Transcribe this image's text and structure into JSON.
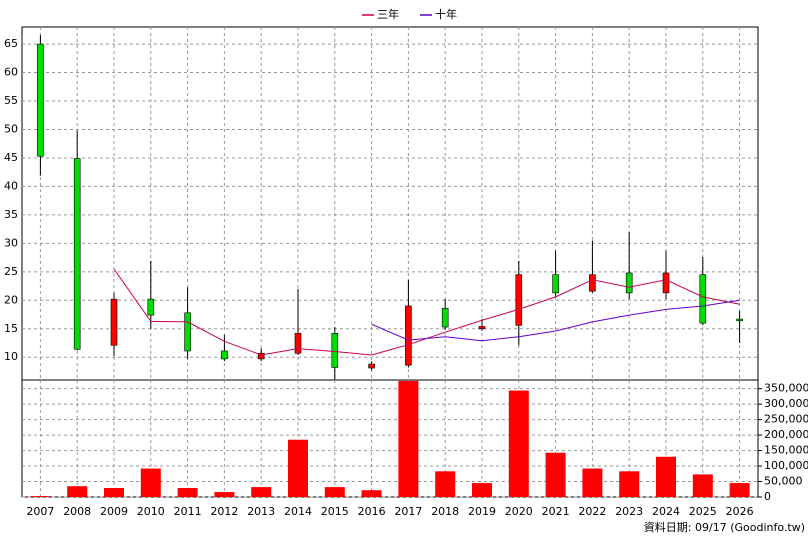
{
  "chart_data": [
    {
      "type": "candlestick",
      "categories": [
        "2007",
        "2008",
        "2009",
        "2010",
        "2011",
        "2012",
        "2013",
        "2014",
        "2015",
        "2016",
        "2017",
        "2018",
        "2019",
        "2020",
        "2021",
        "2022",
        "2023",
        "2024",
        "2025",
        "2026"
      ],
      "open": [
        65,
        44.9,
        12.1,
        20.2,
        17.8,
        11.1,
        9.7,
        10.7,
        14.2,
        8.1,
        8.6,
        18.6,
        15,
        15.6,
        24.5,
        21.6,
        24.8,
        21.3,
        24.5,
        16.7
      ],
      "close": [
        45.3,
        11.4,
        20.2,
        17.4,
        11.1,
        9.7,
        10.7,
        14.2,
        8.2,
        8.8,
        19,
        15.3,
        15.4,
        24.5,
        21.3,
        24.5,
        21.3,
        24.8,
        16,
        16.4
      ],
      "high": [
        66.6,
        49.8,
        21.3,
        26.9,
        22.3,
        13.9,
        11.6,
        22,
        15.3,
        9.3,
        23.6,
        20.2,
        16.7,
        26.9,
        28.7,
        30.5,
        32,
        28.7,
        27.6,
        18.1
      ],
      "low": [
        41.9,
        11.2,
        10.2,
        15,
        9.7,
        9.3,
        9.3,
        10.4,
        6.1,
        7.7,
        8.2,
        14.8,
        14.6,
        12.1,
        20.6,
        21.3,
        20.2,
        20.2,
        15.6,
        12.5
      ],
      "up_color": "#ff0000",
      "down_color": "#00dd00",
      "series": [
        {
          "name": "三年",
          "color": "#cc0055",
          "values": [
            null,
            null,
            25.5,
            16.3,
            16.2,
            12.8,
            10.4,
            11.5,
            11,
            10.4,
            12.2,
            14.4,
            16.5,
            18.4,
            20.6,
            23.6,
            22.3,
            23.6,
            20.6,
            19.3
          ]
        },
        {
          "name": "十年",
          "color": "#6600cc",
          "values": [
            null,
            null,
            null,
            null,
            null,
            null,
            null,
            null,
            null,
            15.8,
            13,
            13.6,
            12.9,
            13.6,
            14.6,
            16.2,
            17.4,
            18.4,
            19,
            20
          ]
        }
      ],
      "ylim": [
        6,
        68
      ],
      "yticks": [
        10,
        15,
        20,
        25,
        30,
        35,
        40,
        45,
        50,
        55,
        60,
        65
      ],
      "grid": true,
      "legend": "top"
    },
    {
      "type": "bar",
      "color": "#ff0000",
      "values": [
        3000,
        35000,
        29000,
        92000,
        29000,
        16000,
        32000,
        185000,
        32000,
        22000,
        375000,
        83000,
        45000,
        344000,
        143000,
        92000,
        83000,
        130000,
        73000,
        45000
      ],
      "ylim": [
        0,
        378000
      ],
      "yticks": [
        0,
        {
          "value": 50000,
          "label": "50,000"
        },
        {
          "value": 100000,
          "label": "100,000"
        },
        {
          "value": 150000,
          "label": "150,000"
        },
        {
          "value": 200000,
          "label": "200,000"
        },
        {
          "value": 250000,
          "label": "250,000"
        },
        {
          "value": 300000,
          "label": "300,000"
        },
        {
          "value": 350000,
          "label": "350,000"
        }
      ],
      "grid": true
    }
  ],
  "note": "資料日期: 09/17  (Goodinfo.tw)"
}
